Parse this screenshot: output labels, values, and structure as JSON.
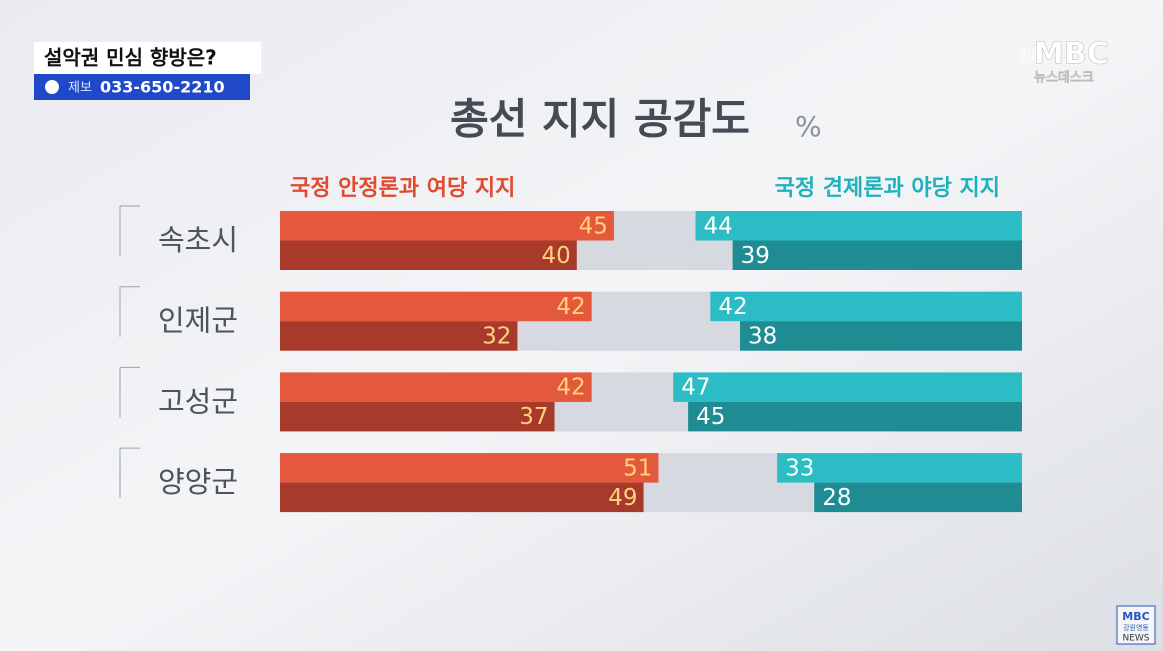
{
  "chart_data": {
    "type": "bar",
    "orientation": "horizontal",
    "title": "총선 지지 공감도",
    "unit": "%",
    "categories": [
      "속초시",
      "인제군",
      "고성군",
      "양양군"
    ],
    "xlim": [
      0,
      100
    ],
    "groups": [
      {
        "name": "국정 안정론과 여당 지지",
        "color": "#e04a30",
        "side": "left",
        "series": [
          {
            "color": "#e4583e",
            "values": [
              45,
              42,
              42,
              51
            ]
          },
          {
            "color": "#a83a2c",
            "values": [
              40,
              32,
              37,
              49
            ]
          }
        ]
      },
      {
        "name": "국정 견제론과 야당 지지",
        "color": "#1fb1bd",
        "side": "right",
        "series": [
          {
            "color": "#2bbcc6",
            "values": [
              44,
              42,
              47,
              33
            ]
          },
          {
            "color": "#1e8c92",
            "values": [
              39,
              38,
              45,
              28
            ]
          }
        ]
      }
    ]
  },
  "overlay": {
    "headline": "설악권 민심 향방은?",
    "tip_label": "제보",
    "phone": "033-650-2210",
    "logo_region": "강원",
    "logo": "MBC",
    "program": "뉴스데스크",
    "corner_logo": "MBC",
    "corner_region": "강원영동",
    "corner_news": "NEWS"
  }
}
